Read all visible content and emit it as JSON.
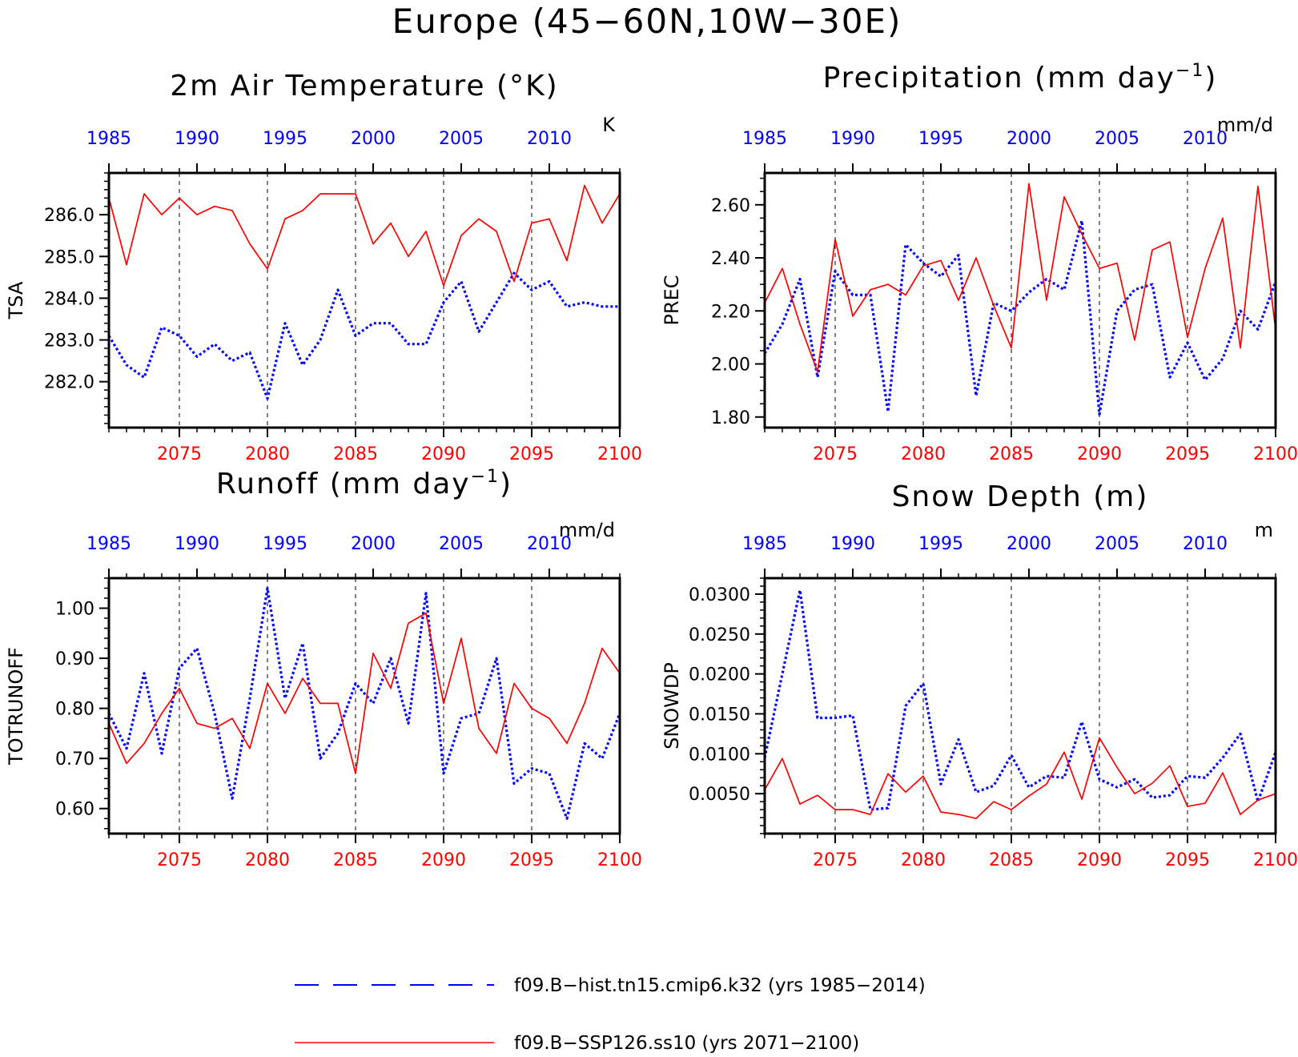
{
  "figure": {
    "title": "Europe (45−60N,10W−30E)"
  },
  "colors": {
    "hist": "#0000ff",
    "ssp": "#ff0000",
    "axis": "#000000",
    "grid": "#000000"
  },
  "legend": {
    "placement": "bottom-center",
    "items": [
      {
        "label": "f09.B−hist.tn15.cmip6.k32 (yrs 1985−2014)",
        "color": "#0000ff",
        "style": "dashed"
      },
      {
        "label": "f09.B−SSP126.ss10 (yrs 2071−2100)",
        "color": "#ff0000",
        "style": "solid"
      }
    ]
  },
  "chart_data": [
    {
      "type": "line",
      "title": "2m Air Temperature (°K)",
      "title_main": "2m Air Temperature (°K)",
      "title_sup": "",
      "title_tail": "",
      "ylabel": "TSA",
      "units": "K",
      "ylim": [
        280.9,
        287.0
      ],
      "yticks": [
        282.0,
        283.0,
        284.0,
        285.0,
        286.0
      ],
      "ytick_labels": [
        "282.0",
        "283.0",
        "284.0",
        "285.0",
        "286.0"
      ],
      "ytick_minor": 0.2,
      "xlim_bottom": [
        2071,
        2100
      ],
      "xticks_bottom": [
        2075,
        2080,
        2085,
        2090,
        2095,
        2100
      ],
      "xtick_labels_bottom": [
        "2075",
        "2080",
        "2085",
        "2090",
        "2095",
        "2100"
      ],
      "xticks_top": [
        1985,
        1990,
        1995,
        2000,
        2005,
        2010
      ],
      "xtick_labels_top": [
        "1985",
        "1990",
        "1995",
        "2000",
        "2005",
        "2010"
      ],
      "grid": "dashed vertical lines at 2075, 2080, 2085, 2090, 2095",
      "series": [
        {
          "name": "f09.B−hist.tn15.cmip6.k32 (yrs 1985−2014)",
          "x_axis": "top",
          "x": [
            1985,
            1986,
            1987,
            1988,
            1989,
            1990,
            1991,
            1992,
            1993,
            1994,
            1995,
            1996,
            1997,
            1998,
            1999,
            2000,
            2001,
            2002,
            2003,
            2004,
            2005,
            2006,
            2007,
            2008,
            2009,
            2010,
            2011,
            2012,
            2013,
            2014
          ],
          "values": [
            283.1,
            282.4,
            282.1,
            283.3,
            283.1,
            282.6,
            282.9,
            282.5,
            282.7,
            281.6,
            283.4,
            282.4,
            283.0,
            284.2,
            283.1,
            283.4,
            283.4,
            282.9,
            282.9,
            283.9,
            284.4,
            283.2,
            283.9,
            284.6,
            284.2,
            284.4,
            283.8,
            283.9,
            283.8,
            283.8
          ]
        },
        {
          "name": "f09.B−SSP126.ss10 (yrs 2071−2100)",
          "x_axis": "bottom",
          "x": [
            2071,
            2072,
            2073,
            2074,
            2075,
            2076,
            2077,
            2078,
            2079,
            2080,
            2081,
            2082,
            2083,
            2084,
            2085,
            2086,
            2087,
            2088,
            2089,
            2090,
            2091,
            2092,
            2093,
            2094,
            2095,
            2096,
            2097,
            2098,
            2099,
            2100
          ],
          "values": [
            286.4,
            284.8,
            286.5,
            286.0,
            286.4,
            286.0,
            286.2,
            286.1,
            285.3,
            284.7,
            285.9,
            286.1,
            286.5,
            286.5,
            286.5,
            285.3,
            285.8,
            285.0,
            285.6,
            284.3,
            285.5,
            285.9,
            285.6,
            284.4,
            285.8,
            285.9,
            284.9,
            286.7,
            285.8,
            286.5
          ]
        }
      ]
    },
    {
      "type": "line",
      "title": "Precipitation (mm day⁻¹)",
      "title_main": "Precipitation (mm day",
      "title_sup": "−1",
      "title_tail": ")",
      "ylabel": "PREC",
      "units": "mm/d",
      "ylim": [
        1.76,
        2.72
      ],
      "yticks": [
        1.8,
        2.0,
        2.2,
        2.4,
        2.6
      ],
      "ytick_labels": [
        "1.80",
        "2.00",
        "2.20",
        "2.40",
        "2.60"
      ],
      "ytick_minor": 0.05,
      "xlim_bottom": [
        2071,
        2100
      ],
      "xticks_bottom": [
        2075,
        2080,
        2085,
        2090,
        2095,
        2100
      ],
      "xtick_labels_bottom": [
        "2075",
        "2080",
        "2085",
        "2090",
        "2095",
        "2100"
      ],
      "xticks_top": [
        1985,
        1990,
        1995,
        2000,
        2005,
        2010
      ],
      "xtick_labels_top": [
        "1985",
        "1990",
        "1995",
        "2000",
        "2005",
        "2010"
      ],
      "grid": "dashed vertical lines at 2075, 2080, 2085, 2090, 2095",
      "series": [
        {
          "name": "f09.B−hist.tn15.cmip6.k32 (yrs 1985−2014)",
          "x_axis": "top",
          "x": [
            1985,
            1986,
            1987,
            1988,
            1989,
            1990,
            1991,
            1992,
            1993,
            1994,
            1995,
            1996,
            1997,
            1998,
            1999,
            2000,
            2001,
            2002,
            2003,
            2004,
            2005,
            2006,
            2007,
            2008,
            2009,
            2010,
            2011,
            2012,
            2013,
            2014
          ],
          "values": [
            2.04,
            2.15,
            2.32,
            1.95,
            2.35,
            2.26,
            2.26,
            1.82,
            2.45,
            2.38,
            2.33,
            2.41,
            1.88,
            2.23,
            2.2,
            2.27,
            2.32,
            2.28,
            2.54,
            1.81,
            2.2,
            2.28,
            2.3,
            1.95,
            2.08,
            1.94,
            2.02,
            2.2,
            2.13,
            2.31
          ]
        },
        {
          "name": "f09.B−SSP126.ss10 (yrs 2071−2100)",
          "x_axis": "bottom",
          "x": [
            2071,
            2072,
            2073,
            2074,
            2075,
            2076,
            2077,
            2078,
            2079,
            2080,
            2081,
            2082,
            2083,
            2084,
            2085,
            2086,
            2087,
            2088,
            2089,
            2090,
            2091,
            2092,
            2093,
            2094,
            2095,
            2096,
            2097,
            2098,
            2099,
            2100
          ],
          "values": [
            2.23,
            2.36,
            2.15,
            1.97,
            2.47,
            2.18,
            2.28,
            2.3,
            2.26,
            2.37,
            2.39,
            2.24,
            2.4,
            2.22,
            2.06,
            2.68,
            2.24,
            2.63,
            2.49,
            2.36,
            2.38,
            2.09,
            2.43,
            2.46,
            2.1,
            2.36,
            2.55,
            2.06,
            2.67,
            2.13
          ]
        }
      ]
    },
    {
      "type": "line",
      "title": "Runoff (mm day⁻¹)",
      "title_main": "Runoff (mm day",
      "title_sup": "−1",
      "title_tail": ")",
      "ylabel": "TOTRUNOFF",
      "units": "mm/d",
      "ylim": [
        0.55,
        1.06
      ],
      "yticks": [
        0.6,
        0.7,
        0.8,
        0.9,
        1.0
      ],
      "ytick_labels": [
        "0.60",
        "0.70",
        "0.80",
        "0.90",
        "1.00"
      ],
      "ytick_minor": 0.02,
      "xlim_bottom": [
        2071,
        2100
      ],
      "xticks_bottom": [
        2075,
        2080,
        2085,
        2090,
        2095,
        2100
      ],
      "xtick_labels_bottom": [
        "2075",
        "2080",
        "2085",
        "2090",
        "2095",
        "2100"
      ],
      "xticks_top": [
        1985,
        1990,
        1995,
        2000,
        2005,
        2010
      ],
      "xtick_labels_top": [
        "1985",
        "1990",
        "1995",
        "2000",
        "2005",
        "2010"
      ],
      "grid": "dashed vertical lines at 2075, 2080, 2085, 2090, 2095",
      "series": [
        {
          "name": "f09.B−hist.tn15.cmip6.k32 (yrs 1985−2014)",
          "x_axis": "top",
          "x": [
            1985,
            1986,
            1987,
            1988,
            1989,
            1990,
            1991,
            1992,
            1993,
            1994,
            1995,
            1996,
            1997,
            1998,
            1999,
            2000,
            2001,
            2002,
            2003,
            2004,
            2005,
            2006,
            2007,
            2008,
            2009,
            2010,
            2011,
            2012,
            2013,
            2014
          ],
          "values": [
            0.79,
            0.72,
            0.87,
            0.71,
            0.88,
            0.92,
            0.79,
            0.62,
            0.82,
            1.04,
            0.82,
            0.93,
            0.7,
            0.75,
            0.85,
            0.81,
            0.9,
            0.77,
            1.03,
            0.67,
            0.78,
            0.79,
            0.9,
            0.65,
            0.68,
            0.67,
            0.58,
            0.73,
            0.7,
            0.79
          ]
        },
        {
          "name": "f09.B−SSP126.ss10 (yrs 2071−2100)",
          "x_axis": "bottom",
          "x": [
            2071,
            2072,
            2073,
            2074,
            2075,
            2076,
            2077,
            2078,
            2079,
            2080,
            2081,
            2082,
            2083,
            2084,
            2085,
            2086,
            2087,
            2088,
            2089,
            2090,
            2091,
            2092,
            2093,
            2094,
            2095,
            2096,
            2097,
            2098,
            2099,
            2100
          ],
          "values": [
            0.77,
            0.69,
            0.73,
            0.79,
            0.84,
            0.77,
            0.76,
            0.78,
            0.72,
            0.85,
            0.79,
            0.86,
            0.81,
            0.81,
            0.67,
            0.91,
            0.84,
            0.97,
            0.99,
            0.81,
            0.94,
            0.76,
            0.71,
            0.85,
            0.8,
            0.78,
            0.73,
            0.81,
            0.92,
            0.87
          ]
        }
      ]
    },
    {
      "type": "line",
      "title": "Snow Depth (m)",
      "title_main": "Snow Depth (m)",
      "title_sup": "",
      "title_tail": "",
      "ylabel": "SNOWDP",
      "units": "m",
      "ylim": [
        0.0,
        0.032
      ],
      "yticks": [
        0.005,
        0.01,
        0.015,
        0.02,
        0.025,
        0.03
      ],
      "ytick_labels": [
        "0.0050",
        "0.0100",
        "0.0150",
        "0.0200",
        "0.0250",
        "0.0300"
      ],
      "ytick_minor": 0.001,
      "xlim_bottom": [
        2071,
        2100
      ],
      "xticks_bottom": [
        2075,
        2080,
        2085,
        2090,
        2095,
        2100
      ],
      "xtick_labels_bottom": [
        "2075",
        "2080",
        "2085",
        "2090",
        "2095",
        "2100"
      ],
      "xticks_top": [
        1985,
        1990,
        1995,
        2000,
        2005,
        2010
      ],
      "xtick_labels_top": [
        "1985",
        "1990",
        "1995",
        "2000",
        "2005",
        "2010"
      ],
      "grid": "dashed vertical lines at 2075, 2080, 2085, 2090, 2095",
      "series": [
        {
          "name": "f09.B−hist.tn15.cmip6.k32 (yrs 1985−2014)",
          "x_axis": "top",
          "x": [
            1985,
            1986,
            1987,
            1988,
            1989,
            1990,
            1991,
            1992,
            1993,
            1994,
            1995,
            1996,
            1997,
            1998,
            1999,
            2000,
            2001,
            2002,
            2003,
            2004,
            2005,
            2006,
            2007,
            2008,
            2009,
            2010,
            2011,
            2012,
            2013,
            2014
          ],
          "values": [
            0.0095,
            0.02,
            0.0305,
            0.0145,
            0.0145,
            0.0148,
            0.003,
            0.0032,
            0.016,
            0.0188,
            0.0062,
            0.0118,
            0.0052,
            0.006,
            0.0098,
            0.0058,
            0.0072,
            0.007,
            0.014,
            0.0068,
            0.0058,
            0.0068,
            0.0045,
            0.0048,
            0.0072,
            0.007,
            0.0095,
            0.0125,
            0.004,
            0.0102
          ]
        },
        {
          "name": "f09.B−SSP126.ss10 (yrs 2071−2100)",
          "x_axis": "bottom",
          "x": [
            2071,
            2072,
            2073,
            2074,
            2075,
            2076,
            2077,
            2078,
            2079,
            2080,
            2081,
            2082,
            2083,
            2084,
            2085,
            2086,
            2087,
            2088,
            2089,
            2090,
            2091,
            2092,
            2093,
            2094,
            2095,
            2096,
            2097,
            2098,
            2099,
            2100
          ],
          "values": [
            0.0055,
            0.0094,
            0.0037,
            0.0048,
            0.003,
            0.003,
            0.0024,
            0.0075,
            0.0052,
            0.0072,
            0.0027,
            0.0024,
            0.0019,
            0.004,
            0.003,
            0.0047,
            0.0062,
            0.0102,
            0.0043,
            0.012,
            0.0083,
            0.005,
            0.0063,
            0.0085,
            0.0034,
            0.0038,
            0.0076,
            0.0024,
            0.0042,
            0.005
          ]
        }
      ]
    }
  ]
}
